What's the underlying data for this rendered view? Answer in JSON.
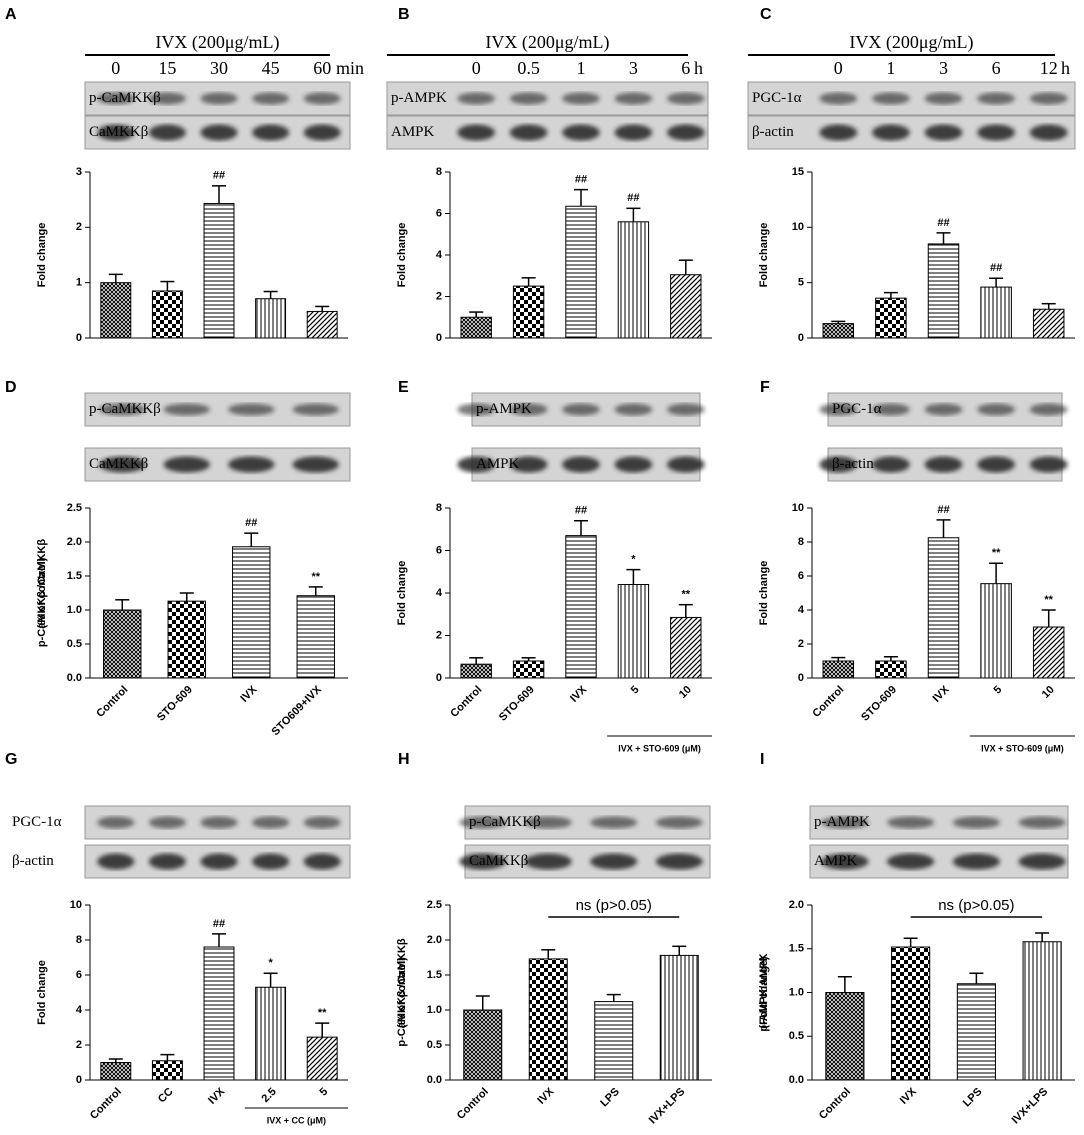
{
  "chart_data": [
    {
      "type": "bar",
      "panel": "A",
      "header": "IVX (200μg/mL)",
      "lanes": [
        "0",
        "15",
        "30",
        "45",
        "60"
      ],
      "lane_unit": "min",
      "blots": [
        "p-CaMKKβ",
        "CaMKKβ"
      ],
      "ylabel": [
        "Fold change"
      ],
      "ylim": [
        0,
        3
      ],
      "yticks": [
        0,
        1,
        2,
        3
      ],
      "values": [
        1.0,
        0.85,
        2.43,
        0.71,
        0.48
      ],
      "errors": [
        0.15,
        0.17,
        0.32,
        0.13,
        0.09
      ],
      "annotations": [
        null,
        null,
        "##",
        null,
        null
      ],
      "patterns": [
        "cross",
        "checker",
        "hlines",
        "vlines",
        "diag"
      ]
    },
    {
      "type": "bar",
      "panel": "B",
      "header": "IVX (200μg/mL)",
      "lanes": [
        "0",
        "0.5",
        "1",
        "3",
        "6"
      ],
      "lane_unit": "h",
      "blots": [
        "p-AMPK",
        "AMPK"
      ],
      "ylabel": [
        "Fold change"
      ],
      "ylim": [
        0,
        8
      ],
      "yticks": [
        0,
        2,
        4,
        6,
        8
      ],
      "values": [
        1.0,
        2.5,
        6.35,
        5.6,
        3.05
      ],
      "errors": [
        0.25,
        0.4,
        0.8,
        0.65,
        0.7
      ],
      "annotations": [
        null,
        null,
        "##",
        "##",
        null
      ],
      "patterns": [
        "cross",
        "checker",
        "hlines",
        "vlines",
        "diag"
      ]
    },
    {
      "type": "bar",
      "panel": "C",
      "header": "IVX (200μg/mL)",
      "lanes": [
        "0",
        "1",
        "3",
        "6",
        "12"
      ],
      "lane_unit": "h",
      "blots": [
        "PGC-1α",
        "β-actin"
      ],
      "ylabel": [
        "Fold change"
      ],
      "ylim": [
        0,
        15
      ],
      "yticks": [
        0,
        5,
        10,
        15
      ],
      "values": [
        1.3,
        3.6,
        8.5,
        4.6,
        2.6
      ],
      "errors": [
        0.2,
        0.5,
        1.0,
        0.8,
        0.5
      ],
      "annotations": [
        null,
        null,
        "##",
        "##",
        null
      ],
      "patterns": [
        "cross",
        "checker",
        "hlines",
        "vlines",
        "diag"
      ]
    },
    {
      "type": "bar",
      "panel": "D",
      "blots": [
        "p-CaMKKβ",
        "CaMKKβ"
      ],
      "ylabel": [
        "p-CaMKKβ /CaMKKβ",
        "(% of control)"
      ],
      "ylim": [
        0,
        2.5
      ],
      "yticks": [
        {
          "value": 0,
          "label": "0.0"
        },
        0.5,
        {
          "value": 1,
          "label": "1.0"
        },
        1.5,
        {
          "value": 2,
          "label": "2.0"
        },
        2.5
      ],
      "categories": [
        "Control",
        "STO-609",
        "IVX",
        "STO609+IVX"
      ],
      "values": [
        1.0,
        1.13,
        1.93,
        1.21
      ],
      "errors": [
        0.15,
        0.12,
        0.2,
        0.13
      ],
      "annotations": [
        null,
        null,
        "##",
        "**"
      ],
      "patterns": [
        "cross",
        "checker",
        "hlines",
        "hlines"
      ]
    },
    {
      "type": "bar",
      "panel": "E",
      "blots": [
        "p-AMPK",
        "AMPK"
      ],
      "ylabel": [
        "Fold change"
      ],
      "ylim": [
        0,
        8
      ],
      "yticks": [
        0,
        2,
        4,
        6,
        8
      ],
      "categories": [
        "Control",
        "STO-609",
        "IVX",
        "5",
        "10"
      ],
      "group_label": "IVX + STO-609 (μM)",
      "values": [
        0.65,
        0.8,
        6.7,
        4.4,
        2.85
      ],
      "errors": [
        0.3,
        0.15,
        0.7,
        0.7,
        0.6
      ],
      "annotations": [
        null,
        null,
        "##",
        "*",
        "**"
      ],
      "patterns": [
        "cross",
        "checker",
        "hlines",
        "vlines",
        "diag"
      ]
    },
    {
      "type": "bar",
      "panel": "F",
      "blots": [
        "PGC-1α",
        "β-actin"
      ],
      "ylabel": [
        "Fold change"
      ],
      "ylim": [
        0,
        10
      ],
      "yticks": [
        0,
        2,
        4,
        6,
        8,
        10
      ],
      "categories": [
        "Control",
        "STO-609",
        "IVX",
        "5",
        "10"
      ],
      "group_label": "IVX + STO-609 (μM)",
      "values": [
        1.0,
        1.0,
        8.25,
        5.55,
        3.0
      ],
      "errors": [
        0.2,
        0.25,
        1.05,
        1.2,
        1.0
      ],
      "annotations": [
        null,
        null,
        "##",
        "**",
        "**"
      ],
      "patterns": [
        "cross",
        "checker",
        "hlines",
        "vlines",
        "diag"
      ]
    },
    {
      "type": "bar",
      "panel": "G",
      "blots": [
        "PGC-1α",
        "β-actin"
      ],
      "ylabel": [
        "Fold change"
      ],
      "ylim": [
        0,
        10
      ],
      "yticks": [
        0,
        2,
        4,
        6,
        8,
        10
      ],
      "categories": [
        "Control",
        "CC",
        "IVX",
        "2.5",
        "5"
      ],
      "group_label": "IVX + CC (μM)",
      "values": [
        1.0,
        1.1,
        7.6,
        5.3,
        2.45
      ],
      "errors": [
        0.2,
        0.35,
        0.75,
        0.8,
        0.8
      ],
      "annotations": [
        null,
        null,
        "##",
        "*",
        "**"
      ],
      "patterns": [
        "cross",
        "checker",
        "hlines",
        "vlines",
        "diag"
      ]
    },
    {
      "type": "bar",
      "panel": "H",
      "blots": [
        "p-CaMKKβ",
        "CaMKKβ"
      ],
      "ylabel": [
        "p-CaMKKβ /CaMKKβ",
        "(% of control)"
      ],
      "ylim": [
        0,
        2.5
      ],
      "yticks": [
        {
          "value": 0,
          "label": "0.0"
        },
        0.5,
        {
          "value": 1,
          "label": "1.0"
        },
        1.5,
        {
          "value": 2,
          "label": "2.0"
        },
        2.5
      ],
      "categories": [
        "Control",
        "IVX",
        "LPS",
        "IVX+LPS"
      ],
      "bracket_label": "ns (p>0.05)",
      "values": [
        1.0,
        1.73,
        1.12,
        1.78
      ],
      "errors": [
        0.2,
        0.13,
        0.1,
        0.13
      ],
      "annotations": [
        null,
        null,
        null,
        null
      ],
      "patterns": [
        "cross",
        "checker",
        "hlines",
        "vlines"
      ]
    },
    {
      "type": "bar",
      "panel": "I",
      "blots": [
        "p-AMPK",
        "AMPK"
      ],
      "ylabel": [
        "p-AMPK/AMPK",
        "(Fold change)"
      ],
      "ylim": [
        0,
        2
      ],
      "yticks": [
        {
          "value": 0,
          "label": "0.0"
        },
        0.5,
        {
          "value": 1,
          "label": "1.0"
        },
        1.5,
        {
          "value": 2,
          "label": "2.0"
        }
      ],
      "categories": [
        "Control",
        "IVX",
        "LPS",
        "IVX+LPS"
      ],
      "bracket_label": "ns (p>0.05)",
      "values": [
        1.0,
        1.52,
        1.1,
        1.58
      ],
      "errors": [
        0.18,
        0.1,
        0.12,
        0.1
      ],
      "annotations": [
        null,
        null,
        null,
        null
      ],
      "patterns": [
        "cross",
        "checker",
        "hlines",
        "vlines"
      ]
    }
  ]
}
